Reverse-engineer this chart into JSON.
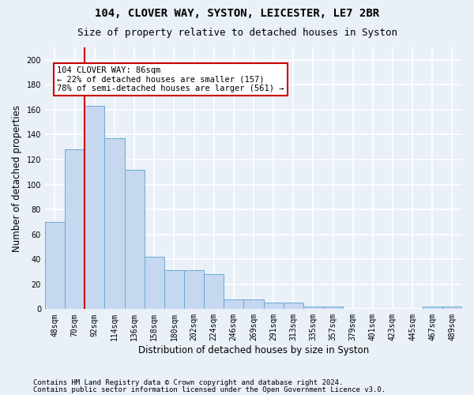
{
  "title1": "104, CLOVER WAY, SYSTON, LEICESTER, LE7 2BR",
  "title2": "Size of property relative to detached houses in Syston",
  "xlabel": "Distribution of detached houses by size in Syston",
  "ylabel": "Number of detached properties",
  "footer1": "Contains HM Land Registry data © Crown copyright and database right 2024.",
  "footer2": "Contains public sector information licensed under the Open Government Licence v3.0.",
  "bar_color": "#c5d8f0",
  "bar_edge_color": "#6aaad4",
  "categories": [
    "48sqm",
    "70sqm",
    "92sqm",
    "114sqm",
    "136sqm",
    "158sqm",
    "180sqm",
    "202sqm",
    "224sqm",
    "246sqm",
    "269sqm",
    "291sqm",
    "313sqm",
    "335sqm",
    "357sqm",
    "379sqm",
    "401sqm",
    "423sqm",
    "445sqm",
    "467sqm",
    "489sqm"
  ],
  "values": [
    70,
    128,
    163,
    137,
    112,
    42,
    31,
    31,
    28,
    8,
    8,
    5,
    5,
    2,
    2,
    0,
    0,
    0,
    0,
    2,
    2
  ],
  "ylim": [
    0,
    210
  ],
  "yticks": [
    0,
    20,
    40,
    60,
    80,
    100,
    120,
    140,
    160,
    180,
    200
  ],
  "red_line_x": 1.5,
  "annotation_text": "104 CLOVER WAY: 86sqm\n← 22% of detached houses are smaller (157)\n78% of semi-detached houses are larger (561) →",
  "annotation_box_color": "#ffffff",
  "annotation_edge_color": "#cc0000",
  "red_line_color": "#cc0000",
  "background_color": "#eaf0f8",
  "plot_bg_color": "#eaf0f8",
  "grid_color": "#ffffff",
  "title1_fontsize": 10,
  "title2_fontsize": 9,
  "xlabel_fontsize": 8.5,
  "ylabel_fontsize": 8.5,
  "tick_fontsize": 7,
  "footer_fontsize": 6.5,
  "annotation_fontsize": 7.5
}
